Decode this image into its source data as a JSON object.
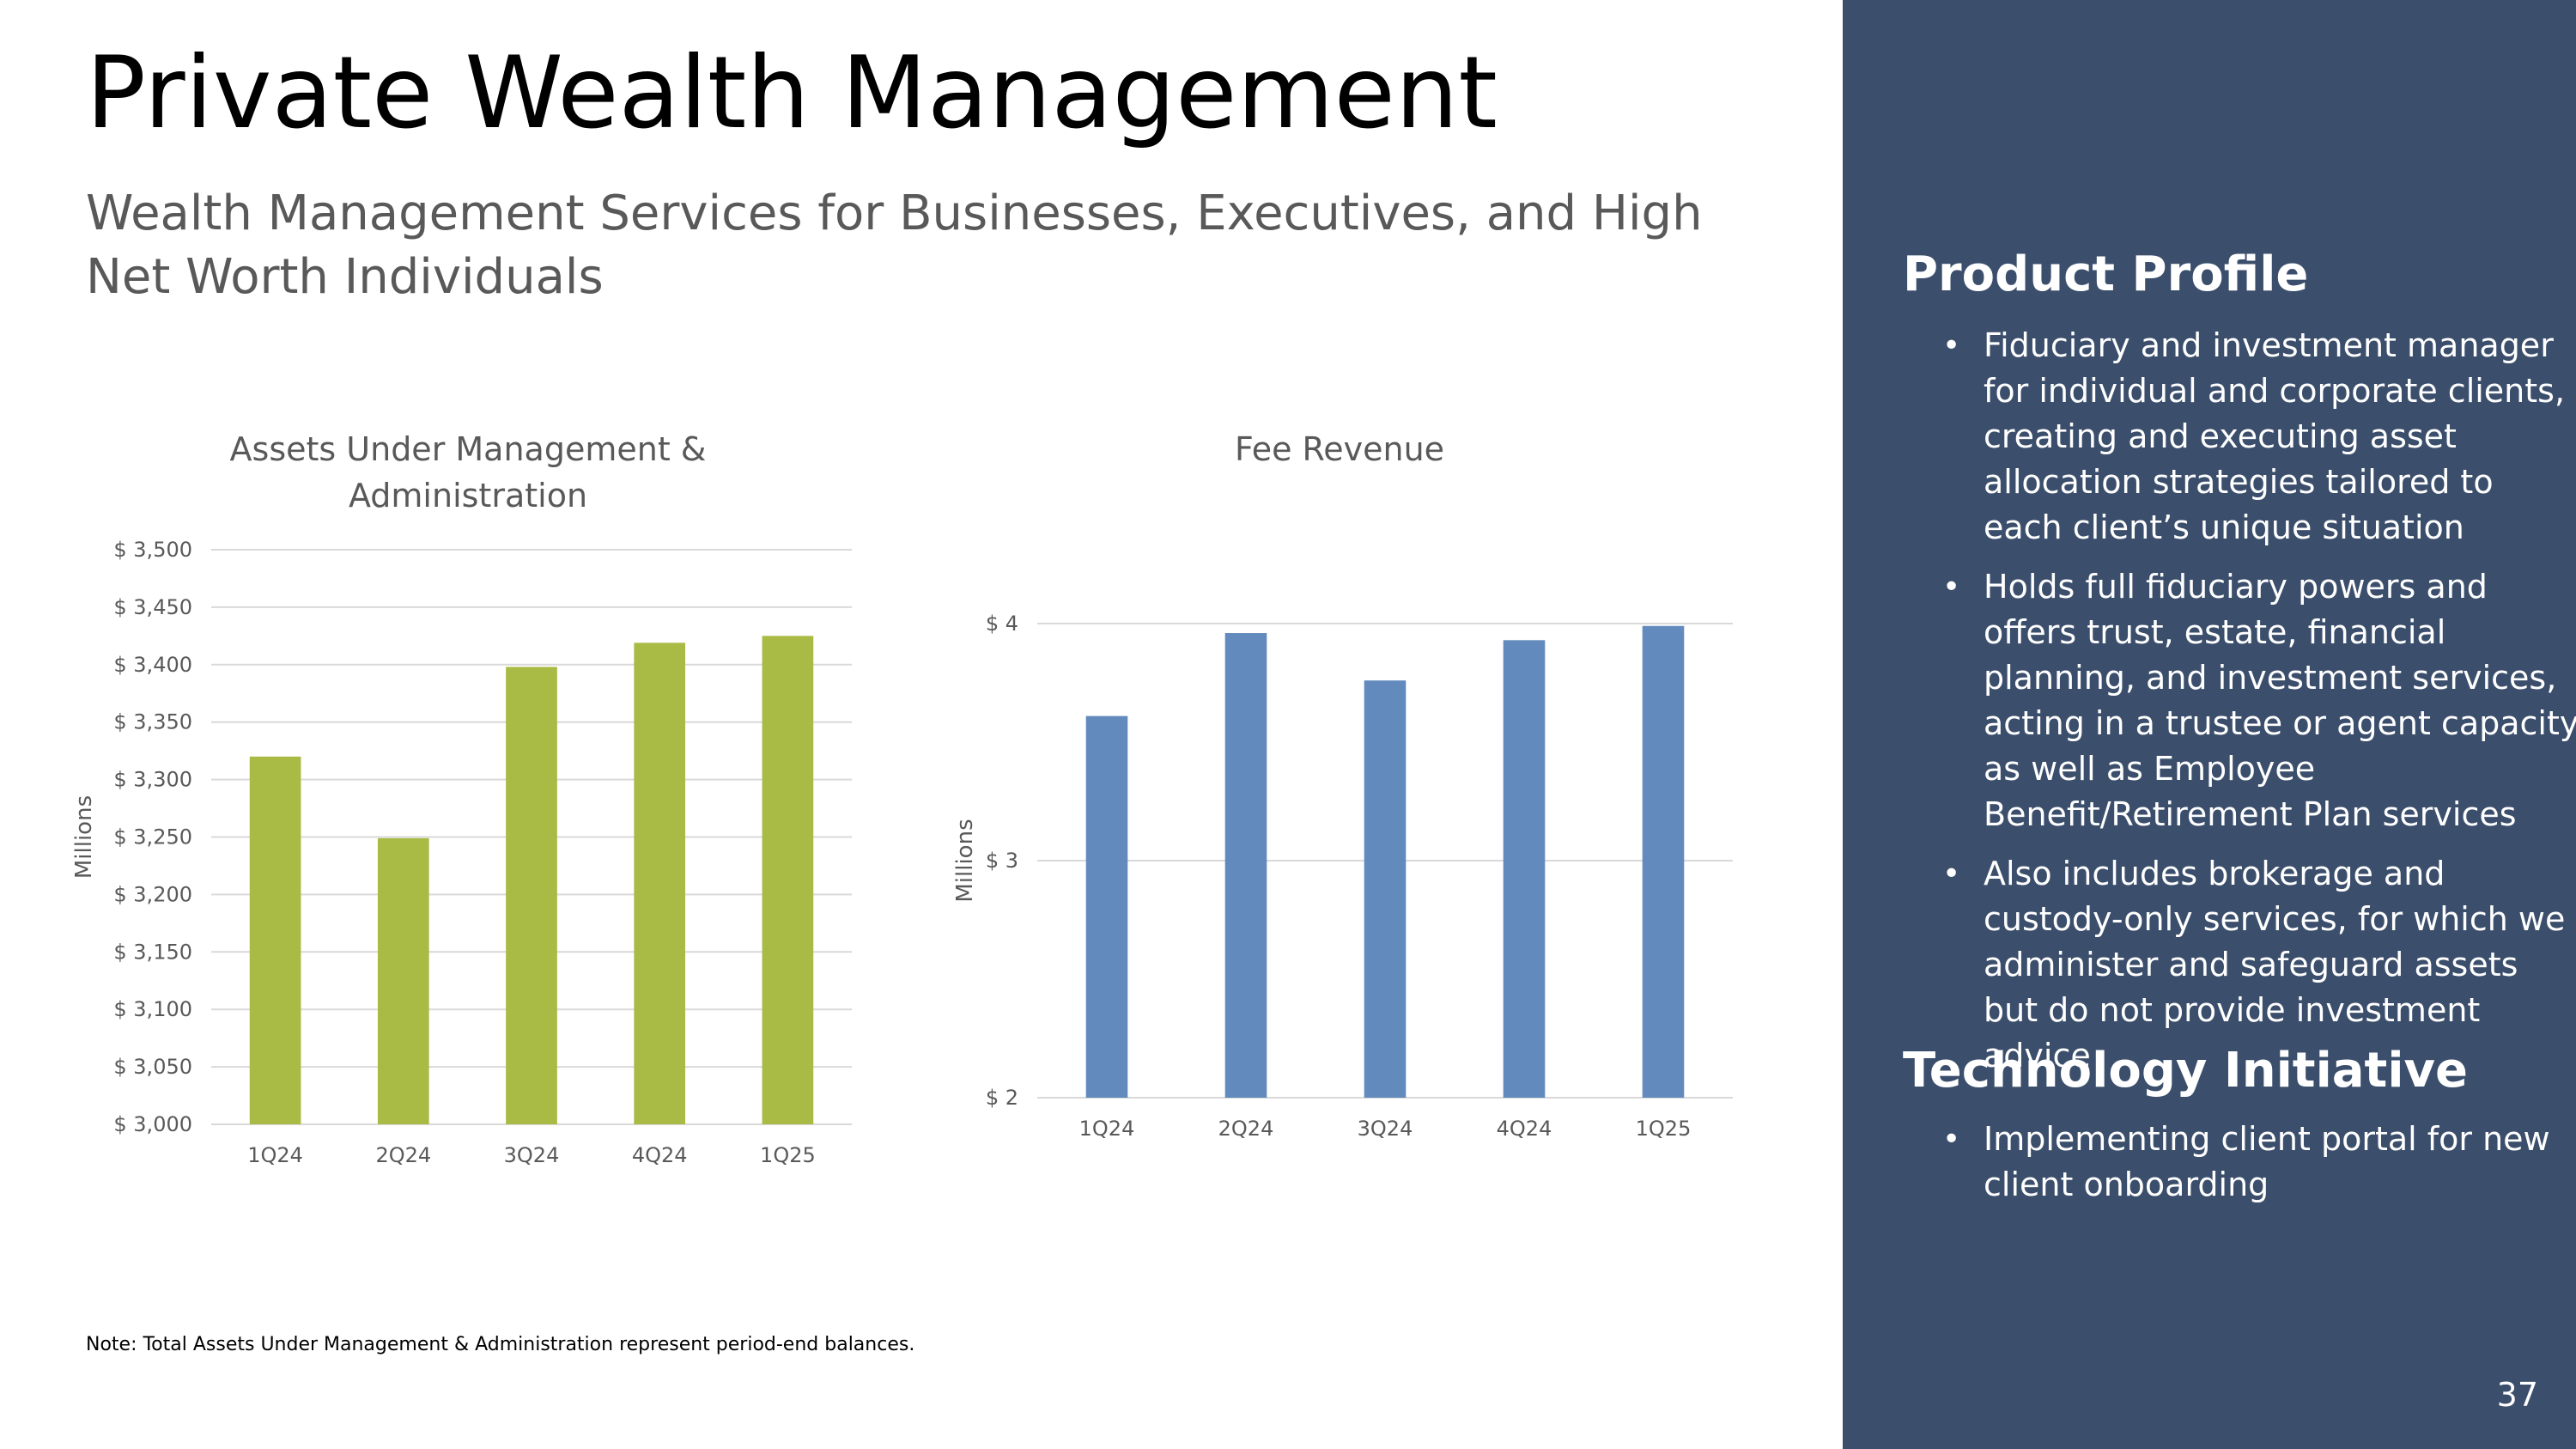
{
  "header": {
    "title": "Private Wealth Management",
    "subtitle": "Wealth Management Services for Businesses, Executives, and High Net Worth Individuals"
  },
  "chart_data": [
    {
      "type": "bar",
      "title": "Assets Under Management & Administration",
      "categories": [
        "1Q24",
        "2Q24",
        "3Q24",
        "4Q24",
        "1Q25"
      ],
      "values": [
        3320,
        3249,
        3398,
        3419,
        3425
      ],
      "ylabel": "Millions",
      "xlabel": "",
      "ylim": [
        3000,
        3500
      ],
      "yticks": [
        3000,
        3050,
        3100,
        3150,
        3200,
        3250,
        3300,
        3350,
        3400,
        3450,
        3500
      ],
      "ytick_labels": [
        "$ 3,000",
        "$ 3,050",
        "$ 3,100",
        "$ 3,150",
        "$ 3,200",
        "$ 3,250",
        "$ 3,300",
        "$ 3,350",
        "$ 3,400",
        "$ 3,450",
        "$ 3,500"
      ],
      "grid": true,
      "color": "#a9ba45"
    },
    {
      "type": "bar",
      "title": "Fee Revenue",
      "categories": [
        "1Q24",
        "2Q24",
        "3Q24",
        "4Q24",
        "1Q25"
      ],
      "values": [
        3.61,
        3.96,
        3.76,
        3.93,
        3.99
      ],
      "ylabel": "Millions",
      "xlabel": "",
      "ylim": [
        2,
        4
      ],
      "yticks": [
        2,
        3,
        4
      ],
      "ytick_labels": [
        "$ 2",
        "$ 3",
        "$ 4"
      ],
      "grid": true,
      "color": "#628abd"
    }
  ],
  "note": "Note: Total Assets Under Management & Administration represent period-end balances.",
  "sidebar": {
    "product_heading": "Product Profile",
    "product_items": [
      "Fiduciary and investment manager for individual and corporate clients, creating and executing asset allocation strategies tailored to each client’s unique situation",
      "Holds full fiduciary powers and offers trust, estate, financial planning, and investment services, acting in a trustee or agent capacity as well as Employee Benefit/Retirement Plan services",
      "Also includes brokerage and custody-only services, for which we administer and safeguard assets but do not provide investment advice"
    ],
    "tech_heading": "Technology Initiative",
    "tech_items": [
      "Implementing client portal for new client onboarding"
    ],
    "bullet": "•"
  },
  "page_number": "37"
}
